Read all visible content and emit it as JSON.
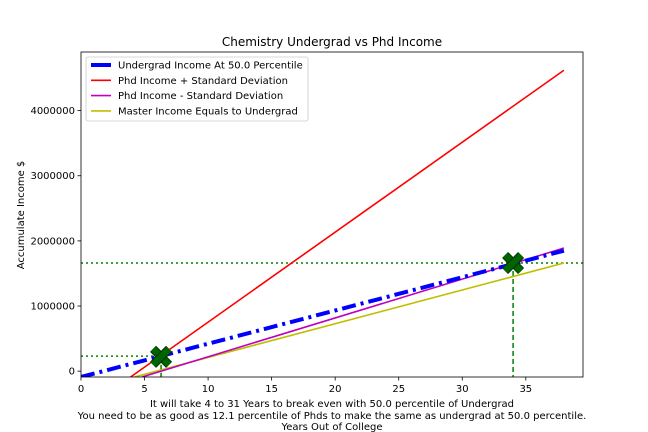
{
  "chart_data": {
    "type": "line",
    "title": "Chemistry Undergrad vs Phd Income",
    "xlabel_lines": [
      "It will take 4 to 31 Years to break even with 50.0 percentile of Undergrad",
      "You need to be as good as 12.1 percentile of Phds to make the same as undergrad at 50.0 percentile.",
      "Years Out of College"
    ],
    "ylabel": "Accumulate Income $",
    "xlim": [
      0,
      39.5
    ],
    "ylim": [
      -90000,
      4900000
    ],
    "x_ticks": [
      0,
      5,
      10,
      15,
      20,
      25,
      30,
      35
    ],
    "x_tick_labels": [
      "0",
      "5",
      "10",
      "15",
      "20",
      "25",
      "30",
      "35"
    ],
    "y_ticks": [
      0,
      1000000,
      2000000,
      3000000,
      4000000
    ],
    "y_tick_labels": [
      "0",
      "1000000",
      "2000000",
      "3000000",
      "4000000"
    ],
    "legend_position": "upper-left",
    "series": [
      {
        "name": "Undergrad Income At 50.0 Percentile",
        "color": "#0000ff",
        "style": "dashdot-thick",
        "x": [
          0,
          38
        ],
        "y": [
          -90000,
          1850000
        ]
      },
      {
        "name": "Phd Income + Standard Deviation",
        "color": "#ff0000",
        "style": "solid",
        "x": [
          3.9,
          38
        ],
        "y": [
          -90000,
          4620000
        ]
      },
      {
        "name": "Phd Income - Standard Deviation",
        "color": "#bf00bf",
        "style": "solid",
        "x": [
          4.8,
          38
        ],
        "y": [
          -90000,
          1890000
        ]
      },
      {
        "name": "Master Income Equals to Undergrad",
        "color": "#bfbf00",
        "style": "solid",
        "x": [
          4.2,
          38
        ],
        "y": [
          -90000,
          1660000
        ]
      }
    ],
    "markers": [
      {
        "x": 6.3,
        "y": 220000,
        "color": "#006400",
        "symbol": "X"
      },
      {
        "x": 34.0,
        "y": 1660000,
        "color": "#006400",
        "symbol": "X"
      }
    ],
    "reference_lines": [
      {
        "orientation": "horizontal",
        "value": 1660000,
        "x_from": 0,
        "x_to": 39.5,
        "color": "#008000",
        "style": "dotted"
      },
      {
        "orientation": "horizontal",
        "value": 230000,
        "x_from": 0,
        "x_to": 6.3,
        "color": "#008000",
        "style": "dotted"
      },
      {
        "orientation": "vertical",
        "value": 6.3,
        "y_to": 220000,
        "color": "#008000",
        "style": "dashed"
      },
      {
        "orientation": "vertical",
        "value": 34.0,
        "y_to": 1660000,
        "color": "#008000",
        "style": "dashed"
      }
    ]
  }
}
